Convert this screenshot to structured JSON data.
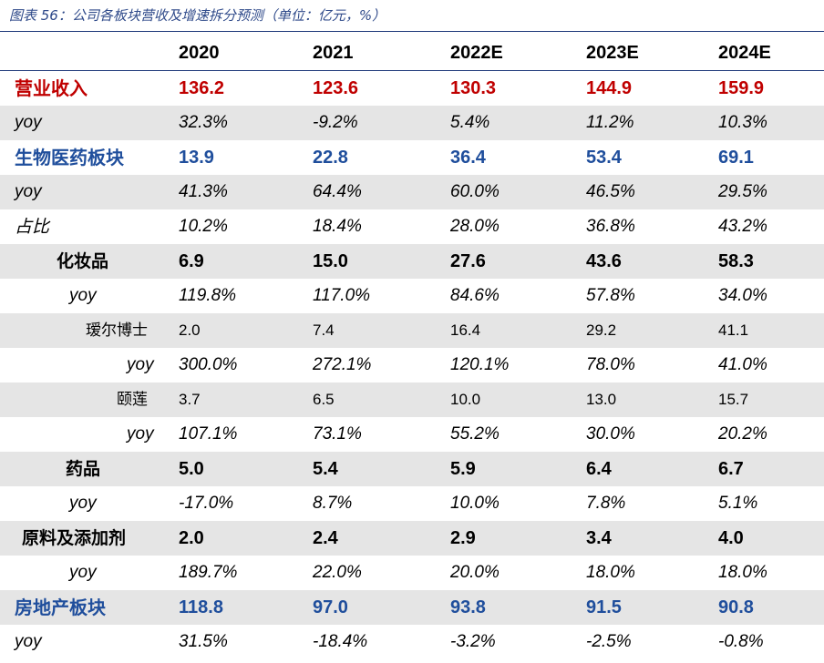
{
  "caption": "图表 56：公司各板块营收及增速拆分预测（单位：亿元，%）",
  "headers": [
    "2020",
    "2021",
    "2022E",
    "2023E",
    "2024E"
  ],
  "rows": [
    {
      "label": "营业收入",
      "values": [
        "136.2",
        "123.6",
        "130.3",
        "144.9",
        "159.9"
      ]
    },
    {
      "label": "yoy",
      "values": [
        "32.3%",
        "-9.2%",
        "5.4%",
        "11.2%",
        "10.3%"
      ]
    },
    {
      "label": "生物医药板块",
      "values": [
        "13.9",
        "22.8",
        "36.4",
        "53.4",
        "69.1"
      ]
    },
    {
      "label": "yoy",
      "values": [
        "41.3%",
        "64.4%",
        "60.0%",
        "46.5%",
        "29.5%"
      ]
    },
    {
      "label": "占比",
      "values": [
        "10.2%",
        "18.4%",
        "28.0%",
        "36.8%",
        "43.2%"
      ]
    },
    {
      "label": "化妆品",
      "values": [
        "6.9",
        "15.0",
        "27.6",
        "43.6",
        "58.3"
      ]
    },
    {
      "label": "yoy",
      "values": [
        "119.8%",
        "117.0%",
        "84.6%",
        "57.8%",
        "34.0%"
      ]
    },
    {
      "label": "瑷尔博士",
      "values": [
        "2.0",
        "7.4",
        "16.4",
        "29.2",
        "41.1"
      ]
    },
    {
      "label": "yoy",
      "values": [
        "300.0%",
        "272.1%",
        "120.1%",
        "78.0%",
        "41.0%"
      ]
    },
    {
      "label": "颐莲",
      "values": [
        "3.7",
        "6.5",
        "10.0",
        "13.0",
        "15.7"
      ]
    },
    {
      "label": "yoy",
      "values": [
        "107.1%",
        "73.1%",
        "55.2%",
        "30.0%",
        "20.2%"
      ]
    },
    {
      "label": "药品",
      "values": [
        "5.0",
        "5.4",
        "5.9",
        "6.4",
        "6.7"
      ]
    },
    {
      "label": "yoy",
      "values": [
        "-17.0%",
        "8.7%",
        "10.0%",
        "7.8%",
        "5.1%"
      ]
    },
    {
      "label": "原料及添加剂",
      "values": [
        "2.0",
        "2.4",
        "2.9",
        "3.4",
        "4.0"
      ]
    },
    {
      "label": "yoy",
      "values": [
        "189.7%",
        "22.0%",
        "20.0%",
        "18.0%",
        "18.0%"
      ]
    },
    {
      "label": "房地产板块",
      "values": [
        "118.8",
        "97.0",
        "93.8",
        "91.5",
        "90.8"
      ]
    },
    {
      "label": "yoy",
      "values": [
        "31.5%",
        "-18.4%",
        "-3.2%",
        "-2.5%",
        "-0.8%"
      ]
    }
  ]
}
